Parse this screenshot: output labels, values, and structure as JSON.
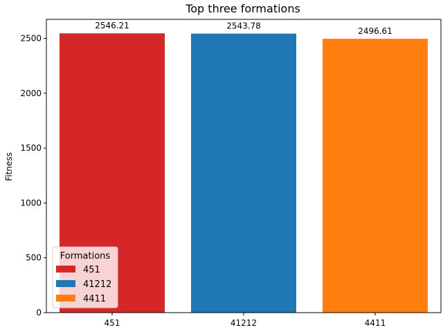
{
  "chart_data": {
    "type": "bar",
    "title": "Top three formations",
    "xlabel": "",
    "ylabel": "Fitness",
    "categories": [
      "451",
      "41212",
      "4411"
    ],
    "values": [
      2546.21,
      2543.78,
      2496.61
    ],
    "value_labels": [
      "2546.21",
      "2543.78",
      "2496.61"
    ],
    "colors": [
      "#d62728",
      "#1f77b4",
      "#ff7f0e"
    ],
    "ylim": [
      0,
      2673.52
    ],
    "yticks": [
      0,
      500,
      1000,
      1500,
      2000,
      2500
    ],
    "ytick_labels": [
      "0",
      "500",
      "1000",
      "1500",
      "2000",
      "2500"
    ],
    "grid": false,
    "legend": {
      "title": "Formations",
      "placement": "lower-left",
      "entries": [
        "451",
        "41212",
        "4411"
      ]
    }
  }
}
